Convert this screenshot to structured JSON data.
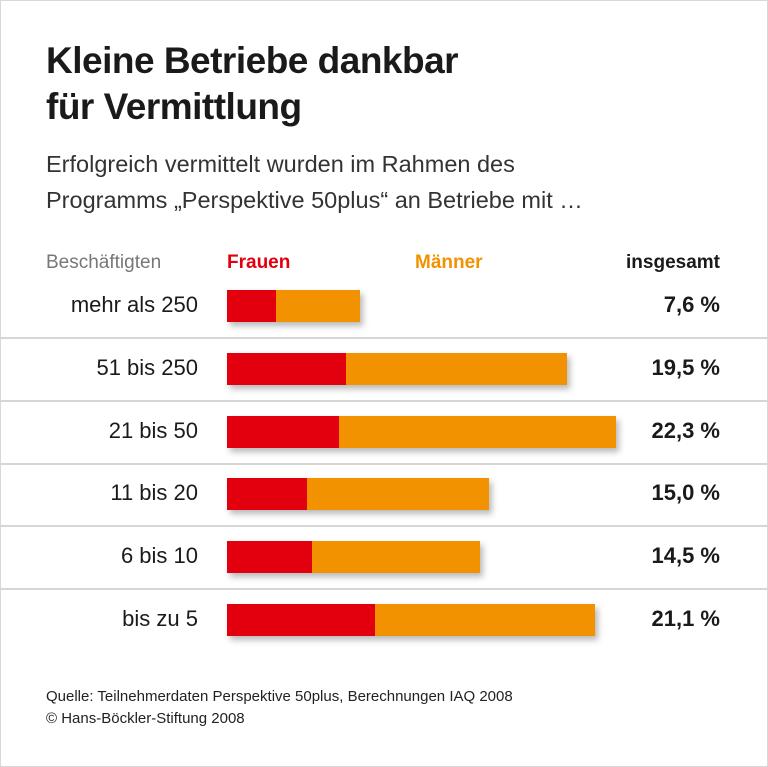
{
  "title_line1": "Kleine Betriebe dankbar",
  "title_line2": "für Vermittlung",
  "subtitle_line1": "Erfolgreich vermittelt wurden im Rahmen des",
  "subtitle_line2": "Programms „Perspektive 50plus“ an Betriebe mit …",
  "source": "Quelle: Teilnehmerdaten Perspektive 50plus, Berechnungen IAQ 2008",
  "copyright": "© Hans-Böckler-Stiftung 2008",
  "chart_data": {
    "type": "bar",
    "orientation": "horizontal",
    "stacked": true,
    "category_header": "Beschäftigten",
    "total_header": "insgesamt",
    "categories": [
      "mehr als 250",
      "51 bis 250",
      "21 bis 50",
      "11 bis 20",
      "6 bis 10",
      "bis zu 5"
    ],
    "series": [
      {
        "name": "Frauen",
        "color": "#e2000f",
        "values": [
          2.8,
          6.8,
          6.4,
          4.6,
          4.9,
          8.5
        ]
      },
      {
        "name": "Männer",
        "color": "#f39200",
        "values": [
          4.8,
          12.7,
          15.9,
          10.4,
          9.6,
          12.6
        ]
      }
    ],
    "totals": [
      7.6,
      19.5,
      22.3,
      15.0,
      14.5,
      21.1
    ],
    "total_labels": [
      "7,6 %",
      "19,5 %",
      "22,3 %",
      "15,0 %",
      "14,5 %",
      "21,1 %"
    ],
    "unit": "%",
    "grid": false
  }
}
